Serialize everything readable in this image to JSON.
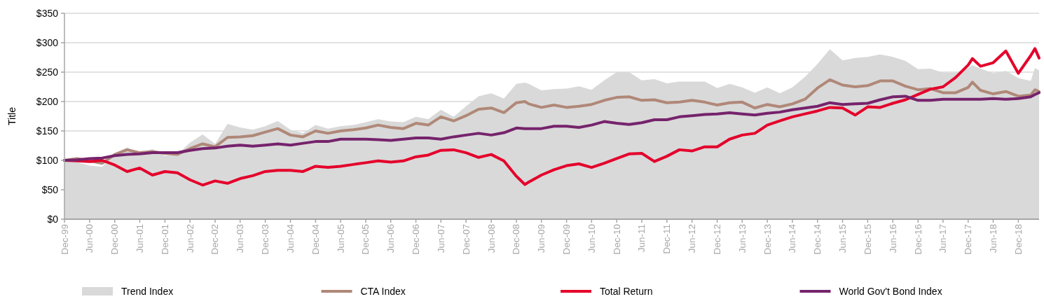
{
  "chart_data": {
    "type": "line",
    "ylabel": "Title",
    "legend": "bottom",
    "grid": "y",
    "xlim": [
      "1999-12",
      "2019-05"
    ],
    "xticks": [
      {
        "value": "1999-12",
        "label": "Dec-99"
      },
      {
        "value": "2000-06",
        "label": "Jun-00"
      },
      {
        "value": "2000-12",
        "label": "Dec-00"
      },
      {
        "value": "2001-06",
        "label": "Jun-01"
      },
      {
        "value": "2001-12",
        "label": "Dec-01"
      },
      {
        "value": "2002-06",
        "label": "Jun-02"
      },
      {
        "value": "2002-12",
        "label": "Dec-02"
      },
      {
        "value": "2003-06",
        "label": "Jun-03"
      },
      {
        "value": "2003-12",
        "label": "Dec-03"
      },
      {
        "value": "2004-06",
        "label": "Jun-04"
      },
      {
        "value": "2004-12",
        "label": "Dec-04"
      },
      {
        "value": "2005-06",
        "label": "Jun-05"
      },
      {
        "value": "2005-12",
        "label": "Dec-05"
      },
      {
        "value": "2006-06",
        "label": "Jun-06"
      },
      {
        "value": "2006-12",
        "label": "Dec-06"
      },
      {
        "value": "2007-06",
        "label": "Jun-07"
      },
      {
        "value": "2007-12",
        "label": "Dec-07"
      },
      {
        "value": "2008-06",
        "label": "Jun-08"
      },
      {
        "value": "2008-12",
        "label": "Dec-08"
      },
      {
        "value": "2009-06",
        "label": "Jun-09"
      },
      {
        "value": "2009-12",
        "label": "Dec-09"
      },
      {
        "value": "2010-06",
        "label": "Jun-10"
      },
      {
        "value": "2010-12",
        "label": "Dec-10"
      },
      {
        "value": "2011-06",
        "label": "Jun-11"
      },
      {
        "value": "2011-12",
        "label": "Dec-11"
      },
      {
        "value": "2012-06",
        "label": "Jun-12"
      },
      {
        "value": "2012-12",
        "label": "Dec-12"
      },
      {
        "value": "2013-06",
        "label": "Jun-13"
      },
      {
        "value": "2013-12",
        "label": "Dec-13"
      },
      {
        "value": "2014-06",
        "label": "Jun-14"
      },
      {
        "value": "2014-12",
        "label": "Dec-14"
      },
      {
        "value": "2015-06",
        "label": "Jun-15"
      },
      {
        "value": "2015-12",
        "label": "Dec-15"
      },
      {
        "value": "2016-06",
        "label": "Jun-16"
      },
      {
        "value": "2016-12",
        "label": "Dec-16"
      },
      {
        "value": "2017-06",
        "label": "Jun-17"
      },
      {
        "value": "2017-12",
        "label": "Dec-17"
      },
      {
        "value": "2018-06",
        "label": "Jun-18"
      },
      {
        "value": "2018-12",
        "label": "Dec-18"
      }
    ],
    "ylim": [
      0,
      350
    ],
    "yticks": [
      {
        "value": 0,
        "label": "$0"
      },
      {
        "value": 50,
        "label": "$50"
      },
      {
        "value": 100,
        "label": "$100"
      },
      {
        "value": 150,
        "label": "$150"
      },
      {
        "value": 200,
        "label": "$200"
      },
      {
        "value": 250,
        "label": "$250"
      },
      {
        "value": 300,
        "label": "$300"
      },
      {
        "value": 350,
        "label": "$350"
      }
    ],
    "x": [
      "1999-12",
      "2000-03",
      "2000-06",
      "2000-09",
      "2000-12",
      "2001-03",
      "2001-06",
      "2001-09",
      "2001-12",
      "2002-03",
      "2002-06",
      "2002-09",
      "2002-12",
      "2003-03",
      "2003-06",
      "2003-09",
      "2003-12",
      "2004-03",
      "2004-06",
      "2004-09",
      "2004-12",
      "2005-03",
      "2005-06",
      "2005-09",
      "2005-12",
      "2006-03",
      "2006-06",
      "2006-09",
      "2006-12",
      "2007-03",
      "2007-06",
      "2007-09",
      "2007-12",
      "2008-03",
      "2008-06",
      "2008-09",
      "2008-12",
      "2009-02",
      "2009-03",
      "2009-06",
      "2009-09",
      "2009-12",
      "2010-03",
      "2010-06",
      "2010-09",
      "2010-12",
      "2011-03",
      "2011-06",
      "2011-09",
      "2011-12",
      "2012-03",
      "2012-06",
      "2012-09",
      "2012-12",
      "2013-03",
      "2013-06",
      "2013-09",
      "2013-12",
      "2014-03",
      "2014-06",
      "2014-09",
      "2014-12",
      "2015-03",
      "2015-06",
      "2015-09",
      "2015-12",
      "2016-03",
      "2016-06",
      "2016-09",
      "2016-12",
      "2017-03",
      "2017-06",
      "2017-09",
      "2017-12",
      "2018-01",
      "2018-03",
      "2018-06",
      "2018-09",
      "2018-12",
      "2019-03",
      "2019-04",
      "2019-05"
    ],
    "series": [
      {
        "name": "Trend Index",
        "type": "area",
        "color": "#d9d9d9",
        "values": [
          100,
          97,
          91,
          89,
          112,
          122,
          113,
          119,
          108,
          110,
          130,
          144,
          128,
          162,
          156,
          152,
          158,
          167,
          152,
          146,
          160,
          154,
          158,
          160,
          165,
          170,
          166,
          165,
          174,
          170,
          186,
          174,
          192,
          209,
          214,
          205,
          230,
          232,
          230,
          219,
          221,
          222,
          226,
          220,
          236,
          250,
          250,
          236,
          238,
          231,
          234,
          234,
          234,
          223,
          230,
          224,
          215,
          224,
          214,
          224,
          242,
          264,
          289,
          270,
          274,
          276,
          280,
          276,
          269,
          255,
          256,
          249,
          249,
          257,
          262,
          256,
          248,
          252,
          240,
          235,
          257,
          253
        ]
      },
      {
        "name": "CTA Index",
        "color": "#b08878",
        "values": [
          100,
          103,
          99,
          95,
          110,
          118,
          113,
          115,
          112,
          110,
          120,
          128,
          123,
          139,
          140,
          142,
          148,
          154,
          143,
          140,
          150,
          146,
          150,
          152,
          155,
          160,
          156,
          154,
          163,
          160,
          174,
          167,
          176,
          187,
          189,
          181,
          198,
          200,
          196,
          190,
          194,
          190,
          192,
          195,
          202,
          207,
          208,
          202,
          203,
          198,
          199,
          202,
          199,
          194,
          198,
          199,
          189,
          195,
          191,
          196,
          204,
          223,
          237,
          228,
          225,
          227,
          235,
          235,
          226,
          220,
          222,
          215,
          215,
          224,
          233,
          219,
          213,
          217,
          209,
          211,
          220,
          217
        ]
      },
      {
        "name": "Total Return",
        "color": "#e4002b",
        "values": [
          100,
          99,
          98,
          100,
          92,
          81,
          87,
          75,
          81,
          79,
          67,
          58,
          65,
          61,
          69,
          74,
          81,
          83,
          83,
          81,
          90,
          88,
          90,
          93,
          96,
          99,
          97,
          99,
          106,
          109,
          117,
          118,
          113,
          105,
          110,
          99,
          73,
          59,
          63,
          75,
          84,
          91,
          94,
          88,
          95,
          103,
          111,
          112,
          98,
          107,
          118,
          116,
          123,
          123,
          136,
          143,
          146,
          160,
          167,
          174,
          179,
          184,
          190,
          189,
          177,
          191,
          190,
          197,
          203,
          212,
          221,
          225,
          241,
          262,
          273,
          260,
          266,
          286,
          248,
          278,
          290,
          274
        ]
      },
      {
        "name": "World Gov't Bond Index",
        "color": "#76236c",
        "values": [
          100,
          101,
          103,
          104,
          108,
          110,
          111,
          113,
          113,
          113,
          117,
          120,
          121,
          124,
          126,
          124,
          126,
          128,
          126,
          129,
          132,
          132,
          136,
          136,
          136,
          135,
          134,
          136,
          138,
          138,
          136,
          140,
          143,
          146,
          143,
          147,
          155,
          154,
          154,
          154,
          158,
          158,
          156,
          160,
          166,
          163,
          161,
          164,
          169,
          169,
          174,
          176,
          178,
          179,
          181,
          179,
          177,
          180,
          182,
          186,
          189,
          192,
          198,
          195,
          196,
          197,
          203,
          208,
          209,
          202,
          202,
          204,
          204,
          204,
          204,
          204,
          205,
          204,
          205,
          208,
          212,
          215
        ]
      }
    ]
  }
}
